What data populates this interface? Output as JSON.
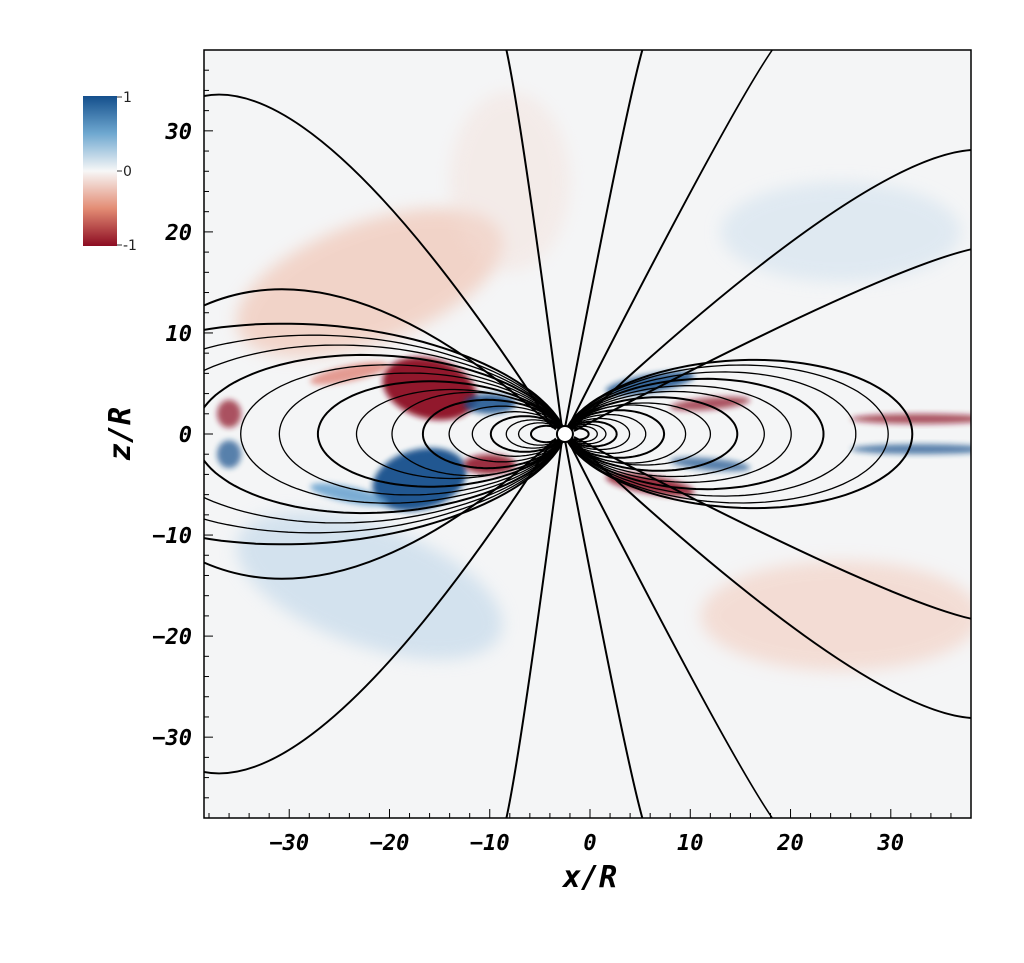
{
  "chart_data": {
    "type": "heatmap",
    "xlabel": "x/R",
    "ylabel": "z/R",
    "xlim": [
      -38.5,
      38
    ],
    "ylim": [
      -38,
      38
    ],
    "xticks": [
      -30,
      -20,
      -10,
      0,
      10,
      20,
      30
    ],
    "yticks": [
      -30,
      -20,
      -10,
      0,
      10,
      20,
      30
    ],
    "xtick_labels": [
      "−30",
      "−20",
      "−10",
      "0",
      "10",
      "20",
      "30"
    ],
    "ytick_labels": [
      "−30",
      "−20",
      "−10",
      "0",
      "10",
      "20",
      "30"
    ],
    "colorbar": {
      "min": -1,
      "max": 1,
      "mid": 0,
      "labels": [
        "1",
        "0",
        "-1"
      ],
      "colormap": "RdBu",
      "colors": {
        "high": "#144f8c",
        "mid": "#f7f7f7",
        "low": "#8c0c22"
      },
      "placement": "top-left"
    },
    "star_center": [
      -2.5,
      0
    ],
    "field_lines": {
      "closed_loops": {
        "count": 16,
        "max_extent_left": -36,
        "max_extent_right": 20
      },
      "open_lines": {
        "count": 14
      },
      "line_color": "#000000"
    }
  }
}
